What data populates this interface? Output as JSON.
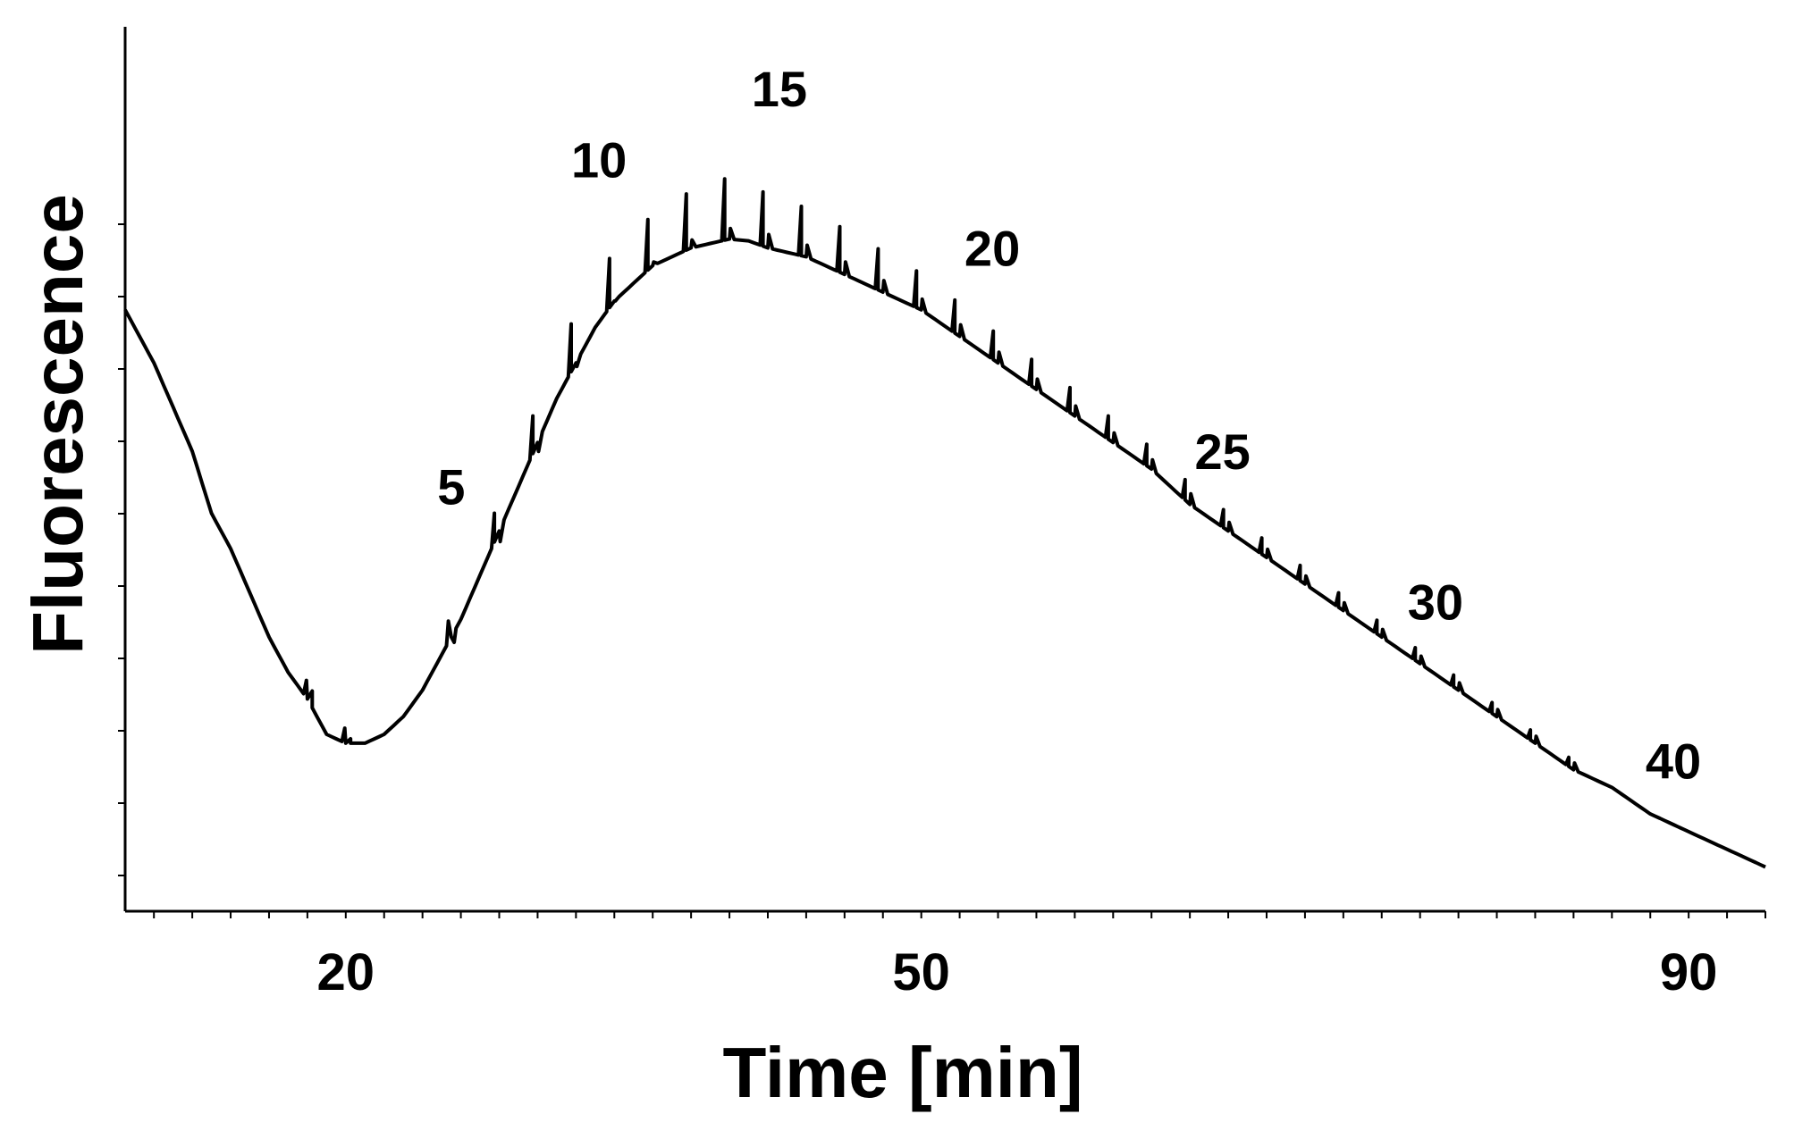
{
  "chart_data": {
    "type": "line",
    "title": "",
    "xlabel": "Time [min]",
    "ylabel": "Fluorescence",
    "x_tick_labels": [
      "20",
      "50",
      "90"
    ],
    "x_ticks": [
      20,
      50,
      90
    ],
    "grid": false,
    "legend": "none",
    "line_color": "#000000",
    "series": [
      {
        "x": [
          8.5,
          10,
          12,
          13,
          14,
          15,
          16,
          17,
          18,
          19,
          20,
          21,
          22,
          23,
          24,
          25,
          26,
          27,
          28,
          29,
          30,
          31,
          32,
          33,
          34,
          35,
          36,
          37,
          38,
          39,
          40,
          41,
          42,
          43,
          44,
          45,
          46,
          47,
          48,
          49,
          50,
          51,
          52,
          54,
          56,
          58,
          60,
          62,
          64,
          66,
          68,
          70,
          72,
          74,
          76,
          78,
          80,
          82,
          84,
          86,
          88,
          90,
          92,
          94
        ],
        "y": [
          0.68,
          0.62,
          0.52,
          0.45,
          0.41,
          0.36,
          0.31,
          0.27,
          0.24,
          0.2,
          0.19,
          0.19,
          0.2,
          0.22,
          0.25,
          0.29,
          0.33,
          0.38,
          0.43,
          0.48,
          0.53,
          0.58,
          0.62,
          0.66,
          0.69,
          0.71,
          0.73,
          0.74,
          0.75,
          0.755,
          0.76,
          0.758,
          0.75,
          0.745,
          0.74,
          0.73,
          0.72,
          0.71,
          0.7,
          0.69,
          0.68,
          0.665,
          0.65,
          0.62,
          0.59,
          0.56,
          0.53,
          0.5,
          0.46,
          0.43,
          0.4,
          0.37,
          0.34,
          0.31,
          0.28,
          0.25,
          0.22,
          0.19,
          0.16,
          0.14,
          0.11,
          0.09,
          0.07,
          0.05
        ]
      }
    ],
    "spikes": [
      {
        "x": 17.8,
        "h": 0.015
      },
      {
        "x": 19.8,
        "h": 0.015
      },
      {
        "x": 25.2,
        "h": 0.03
      },
      {
        "x": 27.6,
        "h": 0.04
      },
      {
        "x": 29.6,
        "h": 0.05
      },
      {
        "x": 31.6,
        "h": 0.06
      },
      {
        "x": 33.6,
        "h": 0.06
      },
      {
        "x": 35.6,
        "h": 0.06
      },
      {
        "x": 37.6,
        "h": 0.065
      },
      {
        "x": 39.6,
        "h": 0.07
      },
      {
        "x": 41.6,
        "h": 0.06
      },
      {
        "x": 43.6,
        "h": 0.055
      },
      {
        "x": 45.6,
        "h": 0.05
      },
      {
        "x": 47.6,
        "h": 0.045
      },
      {
        "x": 49.6,
        "h": 0.04
      },
      {
        "x": 51.6,
        "h": 0.035
      },
      {
        "x": 53.6,
        "h": 0.03
      },
      {
        "x": 55.6,
        "h": 0.028
      },
      {
        "x": 57.6,
        "h": 0.026
      },
      {
        "x": 59.6,
        "h": 0.024
      },
      {
        "x": 61.6,
        "h": 0.022
      },
      {
        "x": 63.6,
        "h": 0.02
      },
      {
        "x": 65.6,
        "h": 0.018
      },
      {
        "x": 67.6,
        "h": 0.016
      },
      {
        "x": 69.6,
        "h": 0.015
      },
      {
        "x": 71.6,
        "h": 0.014
      },
      {
        "x": 73.6,
        "h": 0.013
      },
      {
        "x": 75.6,
        "h": 0.012
      },
      {
        "x": 77.6,
        "h": 0.011
      },
      {
        "x": 79.6,
        "h": 0.01
      },
      {
        "x": 81.6,
        "h": 0.009
      },
      {
        "x": 83.6,
        "h": 0.008
      }
    ],
    "annotations": [
      {
        "text": "5",
        "x": 25.5,
        "y": 0.46
      },
      {
        "text": "10",
        "x": 33.2,
        "y": 0.83
      },
      {
        "text": "15",
        "x": 42.6,
        "y": 0.91
      },
      {
        "text": "20",
        "x": 53.7,
        "y": 0.73
      },
      {
        "text": "25",
        "x": 65.7,
        "y": 0.5
      },
      {
        "text": "30",
        "x": 76.8,
        "y": 0.33
      },
      {
        "text": "40",
        "x": 89.2,
        "y": 0.15
      }
    ]
  }
}
